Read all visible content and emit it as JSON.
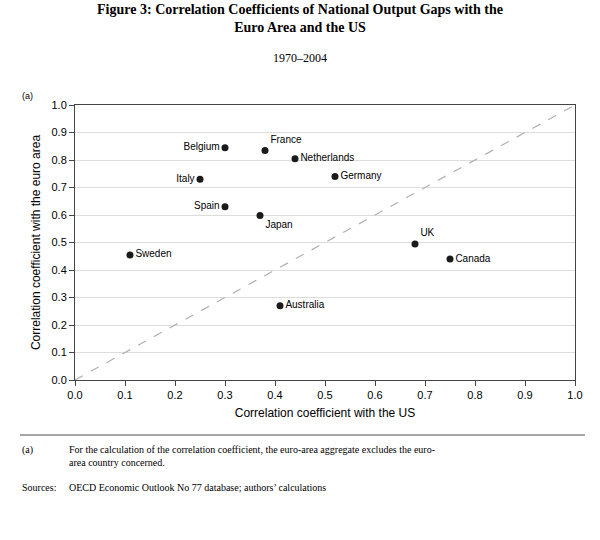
{
  "chart_data": {
    "type": "scatter",
    "title": [
      "Figure 3: Correlation Coefficients of National Output Gaps with the",
      "Euro Area and the US"
    ],
    "subtitle": "1970–2004",
    "xlabel": "Correlation coefficient with the US",
    "ylabel": "Correlation coefficient with the euro area",
    "labels": [
      "Belgium",
      "France",
      "Netherlands",
      "Italy",
      "Germany",
      "Spain",
      "Japan",
      "UK",
      "Sweden",
      "Canada",
      "Australia"
    ],
    "x": [
      0.3,
      0.38,
      0.44,
      0.25,
      0.52,
      0.3,
      0.37,
      0.68,
      0.11,
      0.75,
      0.41
    ],
    "values": [
      0.845,
      0.835,
      0.805,
      0.73,
      0.74,
      0.63,
      0.598,
      0.495,
      0.455,
      0.44,
      0.27
    ],
    "color": "#1a1a1a",
    "marker": "circle",
    "reference_line": {
      "x": [
        0,
        1
      ],
      "y": [
        0,
        1
      ],
      "color": "#b0b0b0",
      "line_style": "dashed"
    },
    "xlim": [
      0.0,
      1.0
    ],
    "ylim": [
      0.0,
      1.0
    ],
    "xticks": [
      {
        "value": 0.0,
        "label": "0.0"
      },
      0.1,
      0.2,
      0.3,
      0.4,
      0.5,
      0.6,
      0.7,
      0.8,
      0.9,
      {
        "value": 1.0,
        "label": "1.0"
      }
    ],
    "yticks": [
      {
        "value": 0.0,
        "label": "0.0"
      },
      0.1,
      0.2,
      0.3,
      0.4,
      0.5,
      0.6,
      0.7,
      0.8,
      0.9,
      {
        "value": 1.0,
        "label": "1.0"
      }
    ],
    "grid": "y",
    "annotations": [
      {
        "text": "(a)"
      },
      {
        "label": "(a)",
        "lines": [
          "For the calculation of the correlation coefficient, the euro-area aggregate excludes the euro-",
          "area country concerned."
        ]
      },
      {
        "label": "Sources:",
        "lines": [
          "OECD Economic Outlook No 77 database; authors’ calculations"
        ]
      }
    ]
  }
}
